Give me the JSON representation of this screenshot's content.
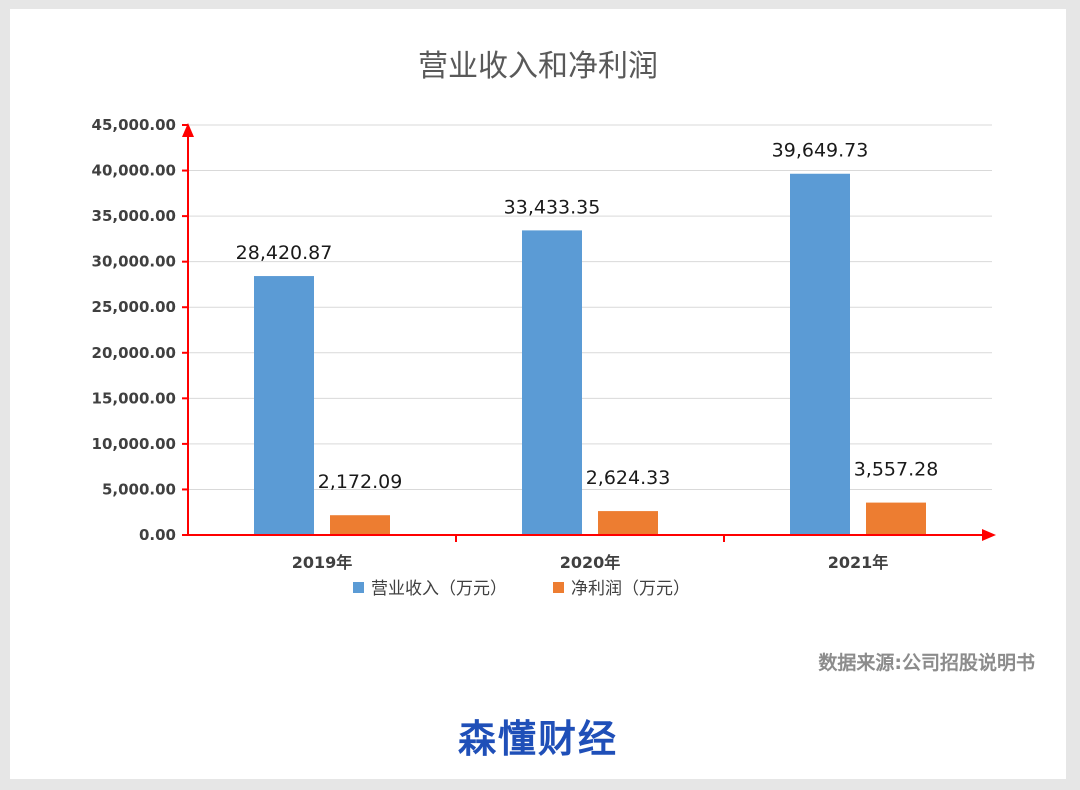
{
  "chart_data": {
    "type": "bar",
    "title": "营业收入和净利润",
    "categories": [
      "2019年",
      "2020年",
      "2021年"
    ],
    "series": [
      {
        "name": "营业收入（万元）",
        "values": [
          28420.87,
          33433.35,
          39649.73
        ],
        "labels": [
          "28,420.87",
          "33,433.35",
          "39,649.73"
        ]
      },
      {
        "name": "净利润（万元）",
        "values": [
          2172.09,
          2624.33,
          3557.28
        ],
        "labels": [
          "2,172.09",
          "2,624.33",
          "3,557.28"
        ]
      }
    ],
    "ylim": [
      0,
      45000
    ],
    "yticks": [
      0,
      5000,
      10000,
      15000,
      20000,
      25000,
      30000,
      35000,
      40000,
      45000
    ],
    "ytick_labels": [
      "0.00",
      "5,000.00",
      "10,000.00",
      "15,000.00",
      "20,000.00",
      "25,000.00",
      "30,000.00",
      "35,000.00",
      "40,000.00",
      "45,000.00"
    ],
    "xlabel": "",
    "ylabel": "",
    "grid": true,
    "legend": "bottom-center"
  },
  "colors": {
    "revenue": "#5b9bd5",
    "profit": "#ed7d31",
    "axis": "#ff0000",
    "grid": "#d9d9d9"
  },
  "source_note": "数据来源:公司招股说明书",
  "brand": "森懂财经"
}
